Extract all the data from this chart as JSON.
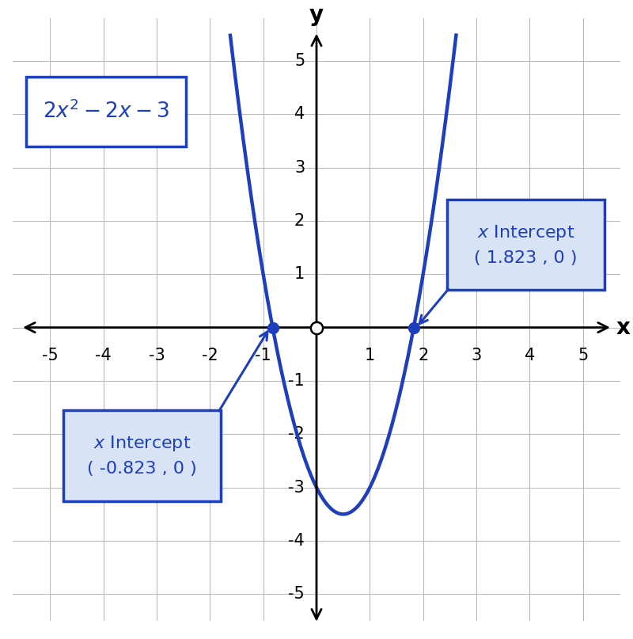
{
  "xlim": [
    -5.7,
    5.7
  ],
  "ylim": [
    -5.5,
    5.8
  ],
  "x_ticks": [
    -5,
    -4,
    -3,
    -2,
    -1,
    1,
    2,
    3,
    4,
    5
  ],
  "y_ticks": [
    -5,
    -4,
    -3,
    -2,
    -1,
    1,
    2,
    3,
    4,
    5
  ],
  "curve_color": "#1e3fbd",
  "curve_linewidth": 3.2,
  "intercept1_x": -0.823,
  "intercept2_x": 1.823,
  "point_color": "#1e3fbd",
  "eq_box_facecolor": "#ffffff",
  "eq_box_edgecolor": "#1e3fbd",
  "label_box_facecolor": "#d8e4f5",
  "label_box_edgecolor": "#1e3fbd",
  "background_color": "#ffffff",
  "grid_color": "#bbbbbb",
  "font_color": "#1e3fbd",
  "axis_arrow_color": "#000000",
  "tick_fontsize": 15,
  "label_fontsize": 16,
  "eq_fontsize": 19
}
